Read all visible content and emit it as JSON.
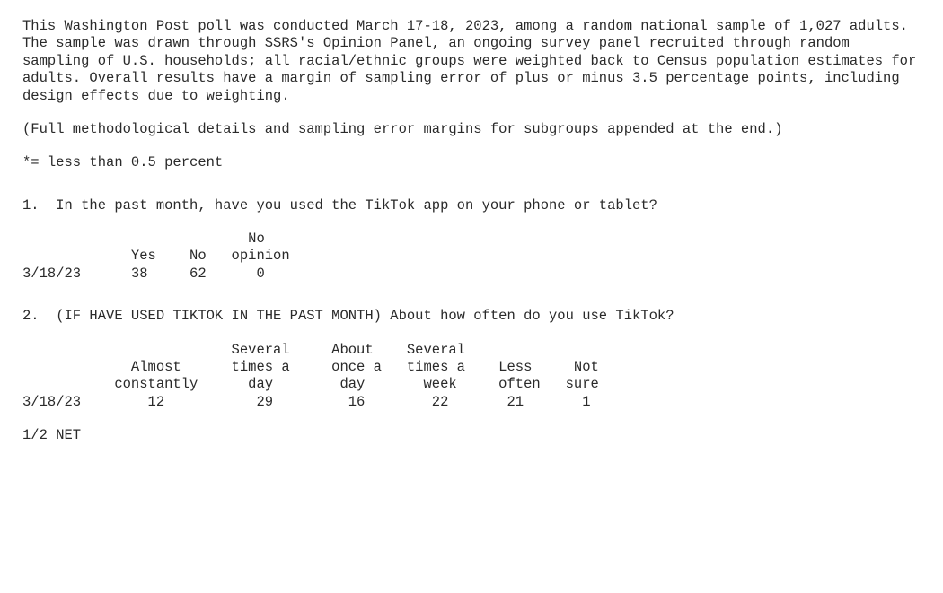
{
  "font": {
    "family": "Courier New",
    "size_pt": 12,
    "color": "#2a2a2a",
    "background_color": "#ffffff",
    "line_height": 1.25
  },
  "intro": {
    "p1": "This Washington Post poll was conducted March 17-18, 2023, among a random national sample of 1,027 adults. The sample was drawn through SSRS's Opinion Panel, an ongoing survey panel recruited through random sampling of U.S. households; all racial/ethnic groups were weighted back to Census population estimates for adults. Overall results have a margin of sampling error of plus or minus 3.5 percentage points, including design effects due to weighting.",
    "p2": "(Full methodological details and sampling error margins for subgroups appended at the end.)",
    "note": "*= less than 0.5 percent"
  },
  "q1": {
    "text": "1.  In the past month, have you used the TikTok app on your phone or tablet?",
    "table": {
      "type": "table",
      "columns": [
        "",
        "Yes",
        "No",
        "No\nopinion"
      ],
      "rows": [
        [
          "3/18/23",
          "38",
          "62",
          "0"
        ]
      ],
      "col_widths_ch": [
        11,
        7,
        6,
        9
      ],
      "header_align": "center",
      "cell_align": "center"
    }
  },
  "q2": {
    "text": "2.  (IF HAVE USED TIKTOK IN THE PAST MONTH) About how often do you use TikTok?",
    "table": {
      "type": "table",
      "columns": [
        "",
        "Almost\nconstantly",
        "Several\ntimes a\nday",
        "About\nonce a\nday",
        "Several\ntimes a\nweek",
        "Less\noften",
        "Not\nsure"
      ],
      "rows": [
        [
          "3/18/23",
          "12",
          "29",
          "16",
          "22",
          "21",
          "1"
        ]
      ],
      "col_widths_ch": [
        9,
        14,
        12,
        10,
        10,
        9,
        7
      ],
      "header_align": "center",
      "cell_align": "center"
    },
    "footnote": "1/2 NET"
  }
}
